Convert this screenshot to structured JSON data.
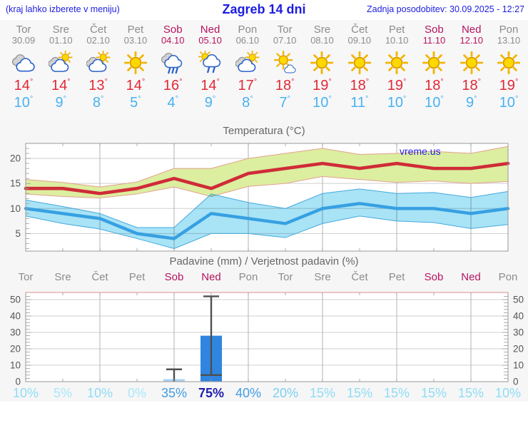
{
  "header": {
    "left_note": "(kraj lahko izberete v meniju)",
    "title": "Zagreb 14 dni",
    "updated": "Zadnja posodobitev: 30.09.2025 - 12:27"
  },
  "misc": {
    "degree": "°",
    "watermark": "vreme.us"
  },
  "colors": {
    "link_blue": "#1c1ce0",
    "weekday_gray": "#8c8c8c",
    "weekend_crimson": "#b5135f",
    "tmax_red": "#e02936",
    "tmin_blue": "#47b2f2",
    "temp_line_max": "#cf2b38",
    "temp_line_min": "#36a0e2",
    "band_max_fill": "#dcee9f",
    "band_max_edge": "#e3a091",
    "band_min_fill": "#a9e3f6",
    "band_min_edge": "#44a9dd",
    "bar_strong": "#2f85e0",
    "bar_light": "#a9d3f5",
    "whisker": "#4f4f4f",
    "prob_0": "#a8e7f8",
    "prob_10": "#8edcf5",
    "prob_20": "#7cd0f1",
    "prob_35": "#429de5",
    "prob_75": "#1e1eb0"
  },
  "days": [
    {
      "name": "Tor",
      "date": "30.09",
      "weekend": false,
      "icon": "cloudy",
      "tmax": "14",
      "tmin": "10",
      "prob": 10,
      "prob_label": "10%"
    },
    {
      "name": "Sre",
      "date": "01.10",
      "weekend": false,
      "icon": "partly-cloudy",
      "tmax": "14",
      "tmin": "9",
      "prob": 5,
      "prob_label": "5%"
    },
    {
      "name": "Čet",
      "date": "02.10",
      "weekend": false,
      "icon": "partly-cloudy",
      "tmax": "13",
      "tmin": "8",
      "prob": 10,
      "prob_label": "10%"
    },
    {
      "name": "Pet",
      "date": "03.10",
      "weekend": false,
      "icon": "sunny",
      "tmax": "14",
      "tmin": "5",
      "prob": 0,
      "prob_label": "0%"
    },
    {
      "name": "Sob",
      "date": "04.10",
      "weekend": true,
      "icon": "rain",
      "tmax": "16",
      "tmin": "4",
      "prob": 35,
      "prob_label": "35%"
    },
    {
      "name": "Ned",
      "date": "05.10",
      "weekend": true,
      "icon": "sun-rain",
      "tmax": "14",
      "tmin": "9",
      "prob": 75,
      "prob_label": "75%"
    },
    {
      "name": "Pon",
      "date": "06.10",
      "weekend": false,
      "icon": "partly-cloudy",
      "tmax": "17",
      "tmin": "8",
      "prob": 40,
      "prob_label": "40%"
    },
    {
      "name": "Tor",
      "date": "07.10",
      "weekend": false,
      "icon": "mostly-sunny",
      "tmax": "18",
      "tmin": "7",
      "prob": 20,
      "prob_label": "20%"
    },
    {
      "name": "Sre",
      "date": "08.10",
      "weekend": false,
      "icon": "sunny",
      "tmax": "19",
      "tmin": "10",
      "prob": 15,
      "prob_label": "15%"
    },
    {
      "name": "Čet",
      "date": "09.10",
      "weekend": false,
      "icon": "sunny",
      "tmax": "18",
      "tmin": "11",
      "prob": 15,
      "prob_label": "15%"
    },
    {
      "name": "Pet",
      "date": "10.10",
      "weekend": false,
      "icon": "sunny",
      "tmax": "19",
      "tmin": "10",
      "prob": 15,
      "prob_label": "15%"
    },
    {
      "name": "Sob",
      "date": "11.10",
      "weekend": true,
      "icon": "sunny",
      "tmax": "18",
      "tmin": "10",
      "prob": 15,
      "prob_label": "15%"
    },
    {
      "name": "Ned",
      "date": "12.10",
      "weekend": true,
      "icon": "sunny",
      "tmax": "18",
      "tmin": "9",
      "prob": 15,
      "prob_label": "15%"
    },
    {
      "name": "Pon",
      "date": "13.10",
      "weekend": false,
      "icon": "sunny",
      "tmax": "19",
      "tmin": "10",
      "prob": 10,
      "prob_label": "10%"
    }
  ],
  "chart_data": [
    {
      "type": "line",
      "title": "Temperatura (°C)",
      "x_labels": [
        "Tor",
        "Sre",
        "Čet",
        "Pet",
        "Sob",
        "Ned",
        "Pon",
        "Tor",
        "Sre",
        "Čet",
        "Pet",
        "Sob",
        "Ned",
        "Pon"
      ],
      "ylim": [
        1.5,
        23
      ],
      "yticks": [
        5,
        10,
        15,
        20
      ],
      "grid": true,
      "grid_day_indices": [
        2,
        4,
        6,
        8,
        10,
        12
      ],
      "legend_position": "none",
      "watermark": "vreme.us",
      "series": [
        {
          "name": "max_temp",
          "values": [
            14,
            14,
            13,
            14,
            16,
            14,
            17,
            18,
            19,
            18,
            19,
            18,
            18,
            19
          ]
        },
        {
          "name": "max_band_upper",
          "values": [
            15.8,
            15.2,
            14.3,
            15.3,
            18,
            18,
            20,
            21,
            22,
            20.8,
            21,
            21.4,
            21,
            22.4
          ]
        },
        {
          "name": "max_band_lower",
          "values": [
            12.9,
            12.4,
            12.1,
            12.9,
            14.3,
            12.4,
            14.4,
            15,
            16.4,
            15.8,
            15.2,
            15.5,
            15,
            15.4
          ]
        },
        {
          "name": "min_temp",
          "values": [
            10,
            9,
            8,
            5,
            4,
            9,
            8,
            7,
            10,
            11,
            10,
            10,
            9,
            10
          ]
        },
        {
          "name": "min_band_upper",
          "values": [
            11.7,
            10.4,
            9,
            6.2,
            6.2,
            12.9,
            11.2,
            10,
            13,
            13.9,
            13,
            13.2,
            12.2,
            13.4
          ]
        },
        {
          "name": "min_band_lower",
          "values": [
            8.5,
            7,
            5.9,
            4,
            2,
            5,
            5,
            4.2,
            7,
            8.5,
            7.5,
            7.2,
            6,
            6.8
          ]
        }
      ]
    },
    {
      "type": "bar",
      "title": "Padavine (mm) / Verjetnost padavin (%)",
      "x_labels": [
        "Tor",
        "Sre",
        "Čet",
        "Pet",
        "Sob",
        "Ned",
        "Pon",
        "Tor",
        "Sre",
        "Čet",
        "Pet",
        "Sob",
        "Ned",
        "Pon"
      ],
      "ylim": [
        0,
        54
      ],
      "yticks": [
        0,
        10,
        20,
        30,
        40,
        50
      ],
      "grid": true,
      "grid_day_indices": [
        2,
        4,
        6,
        8,
        10,
        12
      ],
      "bars_mm": [
        0,
        0,
        0,
        0,
        1.5,
        28,
        0,
        0,
        0,
        0,
        0,
        0,
        0,
        0
      ],
      "whiskers": [
        {
          "day_index": 4,
          "low": 0,
          "high": 7.5
        },
        {
          "day_index": 5,
          "low": 4,
          "high": 52
        }
      ],
      "probabilities_pct": [
        10,
        5,
        10,
        0,
        35,
        75,
        40,
        20,
        15,
        15,
        15,
        15,
        15,
        10
      ]
    }
  ]
}
